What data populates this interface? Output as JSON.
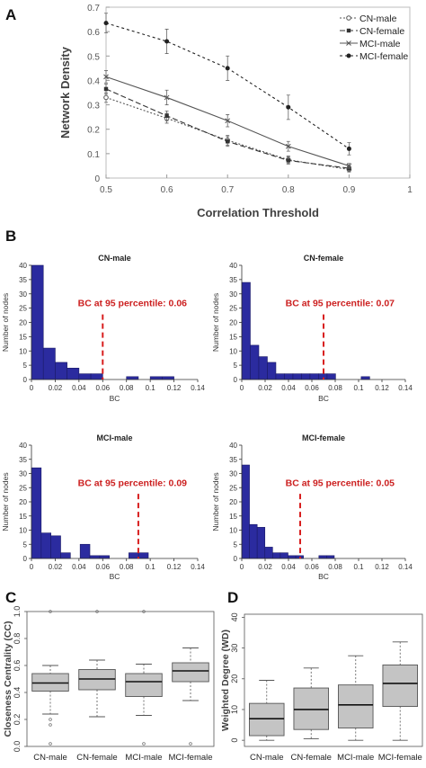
{
  "panel_labels": {
    "A": "A",
    "B": "B",
    "C": "C",
    "D": "D"
  },
  "colors": {
    "bar": "#2b2b9f",
    "threshold": "#d81e1e",
    "threshold_text": "#cc1f1f",
    "box": "#c4c4c4",
    "axis": "#7a7a7a",
    "text": "#404040"
  },
  "chart_data": [
    {
      "id": "A",
      "type": "line",
      "title": "",
      "xlabel": "Correlation Threshold",
      "ylabel": "Network Density",
      "xlim": [
        0.5,
        1
      ],
      "ylim": [
        0,
        0.7
      ],
      "xticks": [
        "0.5",
        "0.6",
        "0.7",
        "0.8",
        "0.9",
        "1"
      ],
      "yticks": [
        "0",
        "0.1",
        "0.2",
        "0.3",
        "0.4",
        "0.5",
        "0.6",
        "0.7"
      ],
      "x": [
        0.5,
        0.6,
        0.7,
        0.8,
        0.9
      ],
      "legend_position": "top-right",
      "series": [
        {
          "name": "CN-male",
          "values": [
            0.33,
            0.245,
            0.155,
            0.075,
            0.035
          ],
          "err": [
            0.02,
            0.02,
            0.02,
            0.015,
            0.01
          ],
          "marker": "open-circle",
          "dash": "2,2",
          "color": "#555555"
        },
        {
          "name": "CN-female",
          "values": [
            0.365,
            0.255,
            0.15,
            0.072,
            0.04
          ],
          "err": [
            0.02,
            0.02,
            0.02,
            0.015,
            0.01
          ],
          "marker": "square",
          "dash": "6,3",
          "color": "#333333"
        },
        {
          "name": "MCI-male",
          "values": [
            0.415,
            0.33,
            0.235,
            0.13,
            0.05
          ],
          "err": [
            0.025,
            0.03,
            0.025,
            0.02,
            0.01
          ],
          "marker": "x",
          "dash": "",
          "color": "#555555"
        },
        {
          "name": "MCI-female",
          "values": [
            0.635,
            0.56,
            0.45,
            0.29,
            0.12
          ],
          "err": [
            0.04,
            0.05,
            0.05,
            0.05,
            0.025
          ],
          "marker": "filled-circle",
          "dash": "3,3",
          "color": "#222222"
        }
      ]
    },
    {
      "id": "B1",
      "type": "bar",
      "title": "CN-male",
      "xlabel": "BC",
      "ylabel": "Number of nodes",
      "xlim": [
        0,
        0.14
      ],
      "ylim": [
        0,
        40
      ],
      "xticks": [
        "0",
        "0.02",
        "0.04",
        "0.06",
        "0.08",
        "0.1",
        "0.12",
        "0.14"
      ],
      "yticks": [
        "0",
        "5",
        "10",
        "15",
        "20",
        "25",
        "30",
        "35",
        "40"
      ],
      "bin_width": 0.01,
      "values": [
        40,
        11,
        6,
        4,
        2,
        2,
        0,
        0,
        1,
        0,
        1,
        1
      ],
      "threshold": 0.06,
      "annotation": "BC at 95 percentile: 0.06"
    },
    {
      "id": "B2",
      "type": "bar",
      "title": "CN-female",
      "xlabel": "BC",
      "ylabel": "Number of nodes",
      "xlim": [
        0,
        0.14
      ],
      "ylim": [
        0,
        40
      ],
      "xticks": [
        "0",
        "0.02",
        "0.04",
        "0.06",
        "0.08",
        "0.1",
        "0.12",
        "0.14"
      ],
      "yticks": [
        "0",
        "5",
        "10",
        "15",
        "20",
        "25",
        "30",
        "35",
        "40"
      ],
      "bin_width": 0.0073,
      "values": [
        34,
        12,
        8,
        6,
        2,
        2,
        2,
        2,
        2,
        2,
        2,
        0,
        0,
        0,
        1
      ],
      "threshold": 0.07,
      "annotation": "BC at 95 percentile: 0.07"
    },
    {
      "id": "B3",
      "type": "bar",
      "title": "MCI-male",
      "xlabel": "BC",
      "ylabel": "Number of nodes",
      "xlim": [
        0,
        0.14
      ],
      "ylim": [
        0,
        40
      ],
      "xticks": [
        "0",
        "0.02",
        "0.04",
        "0.06",
        "0.08",
        "0.1",
        "0.12",
        "0.14"
      ],
      "yticks": [
        "0",
        "5",
        "10",
        "15",
        "20",
        "25",
        "30",
        "35",
        "40"
      ],
      "bin_width": 0.0082,
      "values": [
        32,
        9,
        8,
        2,
        0,
        5,
        1,
        1,
        0,
        0,
        2,
        2
      ],
      "threshold": 0.09,
      "annotation": "BC at 95 percentile: 0.09"
    },
    {
      "id": "B4",
      "type": "bar",
      "title": "MCI-female",
      "xlabel": "BC",
      "ylabel": "Number of nodes",
      "xlim": [
        0,
        0.14
      ],
      "ylim": [
        0,
        40
      ],
      "xticks": [
        "0",
        "0.02",
        "0.04",
        "0.06",
        "0.08",
        "0.1",
        "0.12",
        "0.14"
      ],
      "yticks": [
        "0",
        "5",
        "10",
        "15",
        "20",
        "25",
        "30",
        "35",
        "40"
      ],
      "bin_width": 0.0066,
      "values": [
        33,
        12,
        11,
        4,
        2,
        2,
        1,
        1,
        0,
        0,
        1,
        1
      ],
      "threshold": 0.05,
      "annotation": "BC at 95 percentile: 0.05"
    },
    {
      "id": "C",
      "type": "box",
      "title": "",
      "xlabel": "",
      "ylabel": "Closeness Centrality (CC)",
      "ylim": [
        0,
        1
      ],
      "yticks": [
        "0.0",
        "0.2",
        "0.4",
        "0.6",
        "0.8",
        "1.0"
      ],
      "categories": [
        "CN-male",
        "CN-female",
        "MCI-male",
        "MCI-female"
      ],
      "boxes": [
        {
          "min": 0.24,
          "q1": 0.41,
          "median": 0.47,
          "q3": 0.54,
          "max": 0.6,
          "outliers": [
            1.0,
            0.16,
            0.2,
            0.02
          ]
        },
        {
          "min": 0.22,
          "q1": 0.42,
          "median": 0.5,
          "q3": 0.57,
          "max": 0.64,
          "outliers": [
            1.0
          ]
        },
        {
          "min": 0.23,
          "q1": 0.37,
          "median": 0.48,
          "q3": 0.54,
          "max": 0.61,
          "outliers": [
            1.0,
            0.02
          ]
        },
        {
          "min": 0.34,
          "q1": 0.48,
          "median": 0.56,
          "q3": 0.62,
          "max": 0.73,
          "outliers": [
            0.02
          ]
        }
      ]
    },
    {
      "id": "D",
      "type": "box",
      "title": "",
      "xlabel": "",
      "ylabel": "Weighted Degree (WD)",
      "ylim": [
        -2,
        41
      ],
      "yticks": [
        "0",
        "10",
        "20",
        "30",
        "40"
      ],
      "categories": [
        "CN-male",
        "CN-female",
        "MCI-male",
        "MCI-female"
      ],
      "boxes": [
        {
          "min": 0,
          "q1": 1.5,
          "median": 7,
          "q3": 12,
          "max": 19.5,
          "outliers": []
        },
        {
          "min": 0.5,
          "q1": 3.5,
          "median": 10,
          "q3": 17,
          "max": 23.5,
          "outliers": []
        },
        {
          "min": 0,
          "q1": 4,
          "median": 11.5,
          "q3": 18,
          "max": 27.5,
          "outliers": []
        },
        {
          "min": 0,
          "q1": 11,
          "median": 18.5,
          "q3": 24.5,
          "max": 32,
          "outliers": []
        }
      ]
    }
  ]
}
